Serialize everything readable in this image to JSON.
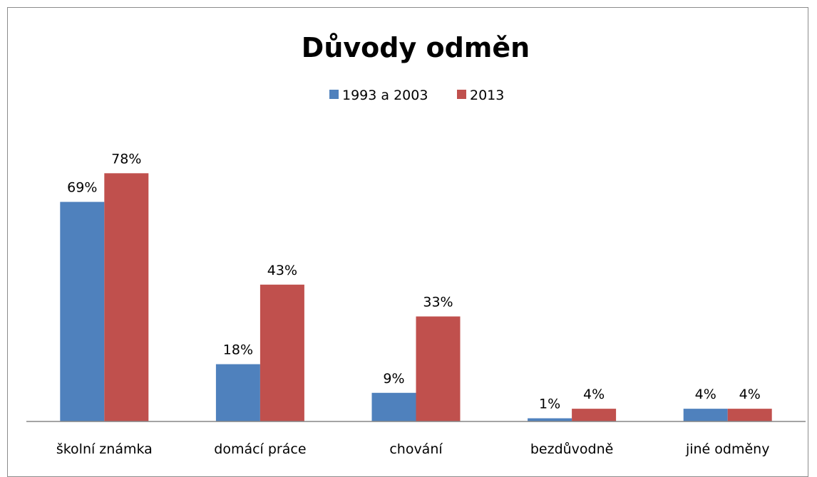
{
  "chart_data": {
    "type": "bar",
    "title": "Důvody odměn",
    "categories": [
      "školní známka",
      "domácí práce",
      "chování",
      "bezdůvodně",
      "jiné odměny"
    ],
    "series": [
      {
        "name": "1993 a 2003",
        "color": "#4F81BD",
        "values": [
          69,
          18,
          9,
          1,
          4
        ],
        "labels": [
          "69%",
          "18%",
          "9%",
          "1%",
          "4%"
        ]
      },
      {
        "name": "2013",
        "color": "#C0504D",
        "values": [
          78,
          43,
          33,
          4,
          4
        ],
        "labels": [
          "78%",
          "43%",
          "33%",
          "4%",
          "4%"
        ]
      }
    ],
    "xlabel": "",
    "ylabel": "",
    "ylim": [
      0,
      100
    ],
    "y_axis_visible": false,
    "grid": false,
    "legend_position": "top"
  }
}
